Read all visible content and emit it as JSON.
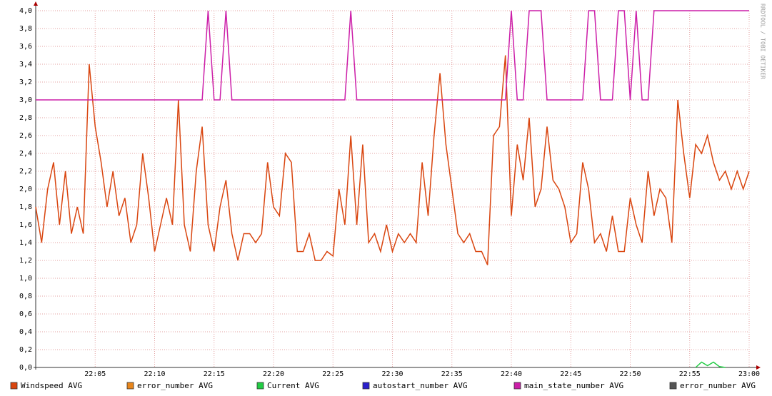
{
  "chart_data": {
    "type": "line",
    "watermark": "RRDTOOL / TOBI OETIKER",
    "x": [
      0,
      0.5,
      1,
      1.5,
      2,
      2.5,
      3,
      3.5,
      4,
      4.5,
      5,
      5.5,
      6,
      6.5,
      7,
      7.5,
      8,
      8.5,
      9,
      9.5,
      10,
      10.5,
      11,
      11.5,
      12,
      12.5,
      13,
      13.5,
      14,
      14.5,
      15,
      15.5,
      16,
      16.5,
      17,
      17.5,
      18,
      18.5,
      19,
      19.5,
      20,
      20.5,
      21,
      21.5,
      22,
      22.5,
      23,
      23.5,
      24,
      24.5,
      25,
      25.5,
      26,
      26.5,
      27,
      27.5,
      28,
      28.5,
      29,
      29.5,
      30,
      30.5,
      31,
      31.5,
      32,
      32.5,
      33,
      33.5,
      34,
      34.5,
      35,
      35.5,
      36,
      36.5,
      37,
      37.5,
      38,
      38.5,
      39,
      39.5,
      40,
      40.5,
      41,
      41.5,
      42,
      42.5,
      43,
      43.5,
      44,
      44.5,
      45,
      45.5,
      46,
      46.5,
      47,
      47.5,
      48,
      48.5,
      49,
      49.5,
      50,
      50.5,
      51,
      51.5,
      52,
      52.5,
      53,
      53.5,
      54,
      54.5,
      55,
      55.5,
      56,
      56.5,
      57,
      57.5,
      58,
      58.5,
      59,
      59.5,
      60
    ],
    "xlim": [
      0,
      60
    ],
    "xticks": [
      {
        "value": 5,
        "label": "22:05"
      },
      {
        "value": 10,
        "label": "22:10"
      },
      {
        "value": 15,
        "label": "22:15"
      },
      {
        "value": 20,
        "label": "22:20"
      },
      {
        "value": 25,
        "label": "22:25"
      },
      {
        "value": 30,
        "label": "22:30"
      },
      {
        "value": 35,
        "label": "22:35"
      },
      {
        "value": 40,
        "label": "22:40"
      },
      {
        "value": 45,
        "label": "22:45"
      },
      {
        "value": 50,
        "label": "22:50"
      },
      {
        "value": 55,
        "label": "22:55"
      },
      {
        "value": 60,
        "label": "23:00"
      }
    ],
    "ylim": [
      0,
      4
    ],
    "yticks": [
      {
        "value": 0,
        "label": "0,0"
      },
      {
        "value": 0.2,
        "label": "0,2"
      },
      {
        "value": 0.4,
        "label": "0,4"
      },
      {
        "value": 0.6,
        "label": "0,6"
      },
      {
        "value": 0.8,
        "label": "0,8"
      },
      {
        "value": 1,
        "label": "1,0"
      },
      {
        "value": 1.2,
        "label": "1,2"
      },
      {
        "value": 1.4,
        "label": "1,4"
      },
      {
        "value": 1.6,
        "label": "1,6"
      },
      {
        "value": 1.8,
        "label": "1,8"
      },
      {
        "value": 2,
        "label": "2,0"
      },
      {
        "value": 2.2,
        "label": "2,2"
      },
      {
        "value": 2.4,
        "label": "2,4"
      },
      {
        "value": 2.6,
        "label": "2,6"
      },
      {
        "value": 2.8,
        "label": "2,8"
      },
      {
        "value": 3,
        "label": "3,0"
      },
      {
        "value": 3.2,
        "label": "3,2"
      },
      {
        "value": 3.4,
        "label": "3,4"
      },
      {
        "value": 3.6,
        "label": "3,6"
      },
      {
        "value": 3.8,
        "label": "3,8"
      },
      {
        "value": 4,
        "label": "4,0"
      }
    ],
    "grid": true,
    "series": [
      {
        "name": "Windspeed AVG",
        "color": "#d9450f",
        "values": [
          1.8,
          1.4,
          2.0,
          2.3,
          1.6,
          2.2,
          1.5,
          1.8,
          1.5,
          3.4,
          2.7,
          2.3,
          1.8,
          2.2,
          1.7,
          1.9,
          1.4,
          1.6,
          2.4,
          1.9,
          1.3,
          1.6,
          1.9,
          1.6,
          3.0,
          1.6,
          1.3,
          2.2,
          2.7,
          1.6,
          1.3,
          1.8,
          2.1,
          1.5,
          1.2,
          1.5,
          1.5,
          1.4,
          1.5,
          2.3,
          1.8,
          1.7,
          2.4,
          2.3,
          1.3,
          1.3,
          1.5,
          1.2,
          1.2,
          1.3,
          1.25,
          2.0,
          1.6,
          2.6,
          1.6,
          2.5,
          1.4,
          1.5,
          1.3,
          1.6,
          1.3,
          1.5,
          1.4,
          1.5,
          1.4,
          2.3,
          1.7,
          2.6,
          3.3,
          2.5,
          2.0,
          1.5,
          1.4,
          1.5,
          1.3,
          1.3,
          1.15,
          2.6,
          2.7,
          3.5,
          1.7,
          2.5,
          2.1,
          2.8,
          1.8,
          2.0,
          2.7,
          2.1,
          2.0,
          1.8,
          1.4,
          1.5,
          2.3,
          2.0,
          1.4,
          1.5,
          1.3,
          1.7,
          1.3,
          1.3,
          1.9,
          1.6,
          1.4,
          2.2,
          1.7,
          2.0,
          1.9,
          1.4,
          3.0,
          2.4,
          1.9,
          2.5,
          2.4,
          2.6,
          2.3,
          2.1,
          2.2,
          2.0,
          2.2,
          2.0,
          2.2
        ]
      },
      {
        "name": "error_number AVG",
        "color": "#e8861c",
        "values": [
          null,
          null,
          null,
          null,
          null,
          null,
          null,
          null,
          null,
          null,
          null,
          null,
          null,
          null,
          null,
          null,
          null,
          null,
          null,
          null,
          null,
          null,
          null,
          null,
          null,
          null,
          null,
          null,
          null,
          null,
          null,
          null,
          null,
          null,
          null,
          null,
          null,
          null,
          null,
          null,
          null,
          null,
          null,
          null,
          null,
          null,
          null,
          null,
          null,
          null,
          null,
          null,
          null,
          null,
          null,
          null,
          null,
          null,
          null,
          null,
          null,
          null,
          null,
          null,
          null,
          null,
          null,
          null,
          null,
          null,
          null,
          null,
          null,
          null,
          null,
          null,
          null,
          null,
          null,
          null,
          null,
          null,
          null,
          null,
          null,
          null,
          null,
          null,
          null,
          null,
          null,
          null,
          null,
          null,
          null,
          null,
          null,
          null,
          null,
          null,
          null,
          null,
          null,
          null,
          null,
          null,
          null,
          null,
          null,
          null,
          null,
          null,
          null,
          null,
          null,
          null,
          null,
          null,
          null,
          null,
          null
        ]
      },
      {
        "name": "Current AVG",
        "color": "#22cc44",
        "values": [
          null,
          null,
          null,
          null,
          null,
          null,
          null,
          null,
          null,
          null,
          null,
          null,
          null,
          null,
          null,
          null,
          null,
          null,
          null,
          null,
          null,
          null,
          null,
          null,
          null,
          null,
          null,
          null,
          null,
          null,
          null,
          null,
          null,
          null,
          null,
          null,
          null,
          null,
          null,
          null,
          null,
          null,
          null,
          null,
          null,
          null,
          null,
          null,
          null,
          null,
          null,
          null,
          null,
          null,
          null,
          null,
          null,
          null,
          null,
          null,
          null,
          null,
          null,
          null,
          null,
          null,
          null,
          null,
          null,
          null,
          null,
          null,
          null,
          null,
          null,
          null,
          null,
          null,
          null,
          null,
          null,
          null,
          null,
          null,
          null,
          null,
          null,
          null,
          null,
          null,
          null,
          null,
          null,
          null,
          null,
          null,
          null,
          null,
          null,
          null,
          null,
          null,
          null,
          null,
          null,
          null,
          null,
          null,
          null,
          null,
          null,
          0,
          0.06,
          0.02,
          0.06,
          0.01,
          0,
          null,
          null,
          null,
          null
        ]
      },
      {
        "name": "autostart_number AVG",
        "color": "#2a1fcc",
        "values": [
          null,
          null,
          null,
          null,
          null,
          null,
          null,
          null,
          null,
          null,
          null,
          null,
          null,
          null,
          null,
          null,
          null,
          null,
          null,
          null,
          null,
          null,
          null,
          null,
          null,
          null,
          null,
          null,
          null,
          null,
          null,
          null,
          null,
          null,
          null,
          null,
          null,
          null,
          null,
          null,
          null,
          null,
          null,
          null,
          null,
          null,
          null,
          null,
          null,
          null,
          null,
          null,
          null,
          null,
          null,
          null,
          null,
          null,
          null,
          null,
          null,
          null,
          null,
          null,
          null,
          null,
          null,
          null,
          null,
          null,
          null,
          null,
          null,
          null,
          null,
          null,
          null,
          null,
          null,
          null,
          null,
          null,
          null,
          null,
          null,
          null,
          null,
          null,
          null,
          null,
          null,
          null,
          null,
          null,
          null,
          null,
          null,
          null,
          null,
          null,
          null,
          null,
          null,
          null,
          null,
          null,
          null,
          null,
          null,
          null,
          null,
          null,
          null,
          null,
          null,
          null,
          null,
          null,
          null,
          null,
          null
        ]
      },
      {
        "name": "main_state_number AVG",
        "color": "#cc1ea8",
        "values": [
          3,
          3,
          3,
          3,
          3,
          3,
          3,
          3,
          3,
          3,
          3,
          3,
          3,
          3,
          3,
          3,
          3,
          3,
          3,
          3,
          3,
          3,
          3,
          3,
          3,
          3,
          3,
          3,
          3,
          4,
          3,
          3,
          4,
          3,
          3,
          3,
          3,
          3,
          3,
          3,
          3,
          3,
          3,
          3,
          3,
          3,
          3,
          3,
          3,
          3,
          3,
          3,
          3,
          4,
          3,
          3,
          3,
          3,
          3,
          3,
          3,
          3,
          3,
          3,
          3,
          3,
          3,
          3,
          3,
          3,
          3,
          3,
          3,
          3,
          3,
          3,
          3,
          3,
          3,
          3,
          4,
          3,
          3,
          4,
          4,
          4,
          3,
          3,
          3,
          3,
          3,
          3,
          3,
          4,
          4,
          3,
          3,
          3,
          4,
          4,
          3,
          4,
          3,
          3,
          4,
          4,
          4,
          4,
          4,
          4,
          4,
          4,
          4,
          4,
          4,
          4,
          4,
          4,
          4,
          4,
          4
        ]
      },
      {
        "name": "error_number AVG",
        "color": "#555555",
        "values": [
          null,
          null,
          null,
          null,
          null,
          null,
          null,
          null,
          null,
          null,
          null,
          null,
          null,
          null,
          null,
          null,
          null,
          null,
          null,
          null,
          null,
          null,
          null,
          null,
          null,
          null,
          null,
          null,
          null,
          null,
          null,
          null,
          null,
          null,
          null,
          null,
          null,
          null,
          null,
          null,
          null,
          null,
          null,
          null,
          null,
          null,
          null,
          null,
          null,
          null,
          null,
          null,
          null,
          null,
          null,
          null,
          null,
          null,
          null,
          null,
          null,
          null,
          null,
          null,
          null,
          null,
          null,
          null,
          null,
          null,
          null,
          null,
          null,
          null,
          null,
          null,
          null,
          null,
          null,
          null,
          null,
          null,
          null,
          null,
          null,
          null,
          null,
          null,
          null,
          null,
          null,
          null,
          null,
          null,
          null,
          null,
          null,
          null,
          null,
          null,
          null,
          null,
          null,
          null,
          null,
          null,
          null,
          null,
          null,
          null,
          null,
          null,
          null,
          null,
          null,
          null,
          null,
          null,
          null,
          null,
          null
        ]
      }
    ]
  }
}
